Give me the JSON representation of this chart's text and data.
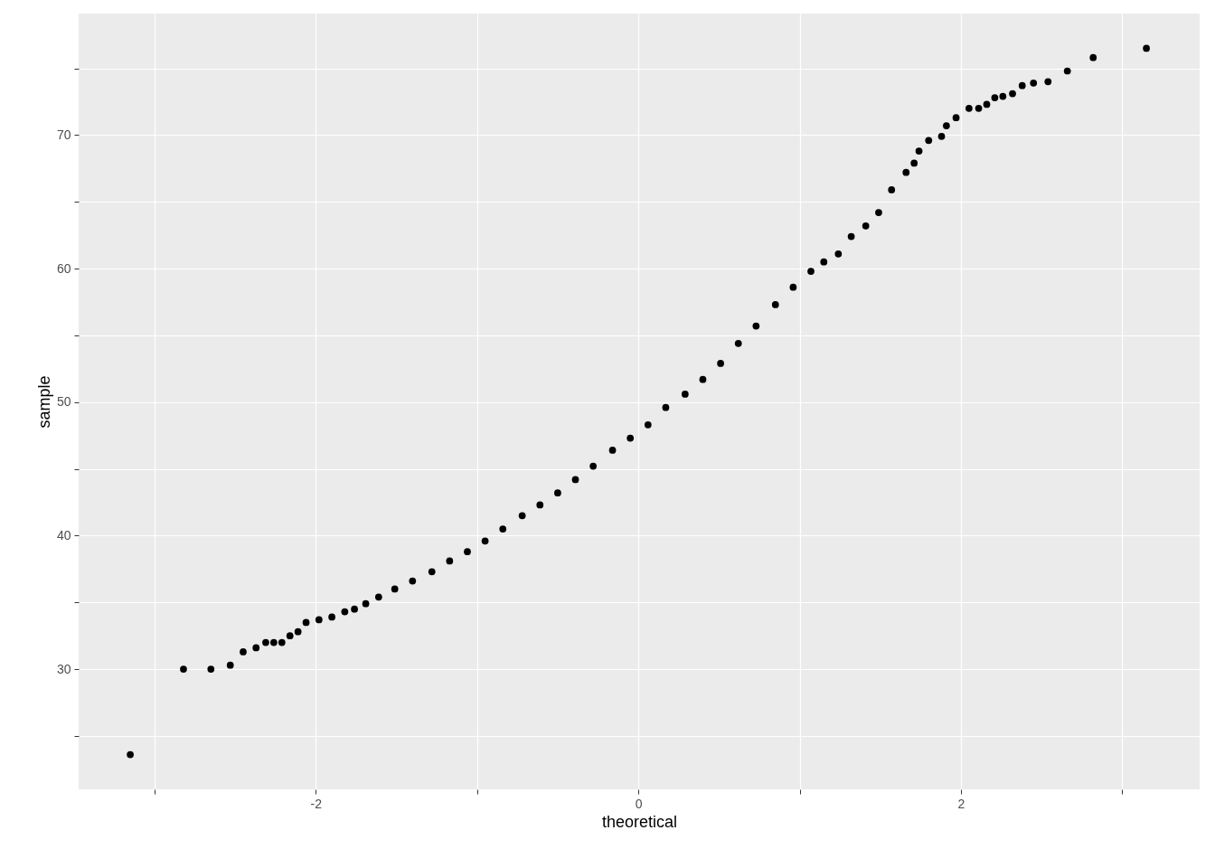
{
  "chart_data": {
    "type": "scatter",
    "xlabel": "theoretical",
    "ylabel": "sample",
    "x": [
      -3.15,
      -2.82,
      -2.65,
      -2.53,
      -2.45,
      -2.37,
      -2.31,
      -2.26,
      -2.21,
      -2.16,
      -2.11,
      -2.06,
      -1.98,
      -1.9,
      -1.82,
      -1.76,
      -1.69,
      -1.61,
      -1.51,
      -1.4,
      -1.28,
      -1.17,
      -1.06,
      -0.95,
      -0.84,
      -0.72,
      -0.61,
      -0.5,
      -0.39,
      -0.28,
      -0.16,
      -0.05,
      0.06,
      0.17,
      0.29,
      0.4,
      0.51,
      0.62,
      0.73,
      0.85,
      0.96,
      1.07,
      1.15,
      1.24,
      1.32,
      1.41,
      1.49,
      1.57,
      1.66,
      1.71,
      1.74,
      1.8,
      1.88,
      1.91,
      1.97,
      2.05,
      2.11,
      2.16,
      2.21,
      2.26,
      2.32,
      2.38,
      2.45,
      2.54,
      2.66,
      2.82,
      3.15
    ],
    "series": [
      {
        "color": "#000000",
        "values": [
          23.6,
          30.0,
          30.0,
          30.3,
          31.3,
          31.6,
          32.0,
          32.0,
          32.0,
          32.5,
          32.8,
          33.5,
          33.7,
          33.9,
          34.3,
          34.5,
          34.9,
          35.4,
          36.0,
          36.6,
          37.3,
          38.1,
          38.8,
          39.6,
          40.5,
          41.5,
          42.3,
          43.2,
          44.2,
          45.2,
          46.4,
          47.3,
          48.3,
          49.6,
          50.6,
          51.7,
          52.9,
          54.4,
          55.7,
          57.3,
          58.6,
          59.8,
          60.5,
          61.1,
          62.4,
          63.2,
          64.2,
          65.9,
          67.2,
          67.9,
          68.8,
          69.6,
          69.9,
          70.7,
          71.3,
          72.0,
          72.0,
          72.3,
          72.8,
          72.9,
          73.1,
          73.7,
          73.9,
          74.0,
          74.8,
          75.8,
          76.5
        ]
      }
    ],
    "xlim": [
      -3.47,
      3.48
    ],
    "ylim": [
      21.0,
      79.1
    ],
    "xticks": [
      {
        "value": -3,
        "label": null
      },
      -2,
      {
        "value": -1,
        "label": null
      },
      0,
      {
        "value": 1,
        "label": null
      },
      2,
      {
        "value": 3,
        "label": null
      }
    ],
    "yticks": [
      {
        "value": 25,
        "label": null
      },
      30,
      {
        "value": 35,
        "label": null
      },
      40,
      {
        "value": 45,
        "label": null
      },
      50,
      {
        "value": 55,
        "label": null
      },
      60,
      {
        "value": 65,
        "label": null
      },
      70,
      {
        "value": 75,
        "label": null
      }
    ],
    "grid": true,
    "marker": "circle"
  }
}
